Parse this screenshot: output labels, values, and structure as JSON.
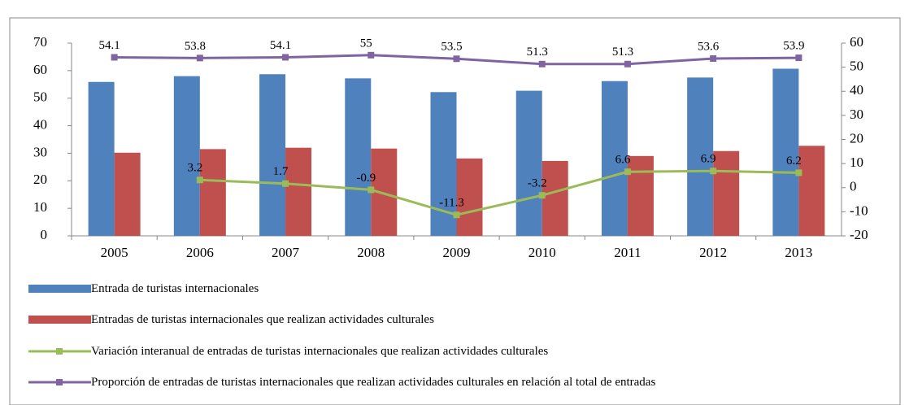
{
  "chart_data": {
    "type": "bar-line",
    "categories": [
      "2005",
      "2006",
      "2007",
      "2008",
      "2009",
      "2010",
      "2011",
      "2012",
      "2013"
    ],
    "series": [
      {
        "name": "Entrada de turistas internacionales",
        "type": "bar",
        "color": "#4f81bd",
        "values": [
          55.9,
          58.0,
          58.7,
          57.2,
          52.2,
          52.7,
          56.2,
          57.5,
          60.7
        ]
      },
      {
        "name": "Entradas de turistas internacionales que realizan actividades culturales",
        "type": "bar",
        "color": "#c0504d",
        "values": [
          30.2,
          31.5,
          32.0,
          31.7,
          28.1,
          27.2,
          29.0,
          30.8,
          32.7
        ]
      },
      {
        "name": "Variación interanual de entradas de turistas internacionales que realizan actividades culturales",
        "type": "line",
        "axis": "y2",
        "color": "#9bbb59",
        "values": [
          null,
          3.2,
          1.7,
          -0.9,
          -11.3,
          -3.2,
          6.6,
          6.9,
          6.2
        ]
      },
      {
        "name": "Proporción de entradas de turistas internacionales que realizan actividades culturales en relación al total de entradas",
        "type": "line",
        "axis": "y2",
        "color": "#8064a2",
        "values": [
          54.1,
          53.8,
          54.1,
          55,
          53.5,
          51.3,
          51.3,
          53.6,
          53.9
        ]
      }
    ],
    "ylim": [
      0,
      70
    ],
    "yticks": [
      0,
      10,
      20,
      30,
      40,
      50,
      60,
      70
    ],
    "y2lim": [
      -20,
      60
    ],
    "y2ticks": [
      -20,
      -10,
      0,
      10,
      20,
      30,
      40,
      50,
      60
    ],
    "grid": false,
    "legend": "bottom"
  }
}
